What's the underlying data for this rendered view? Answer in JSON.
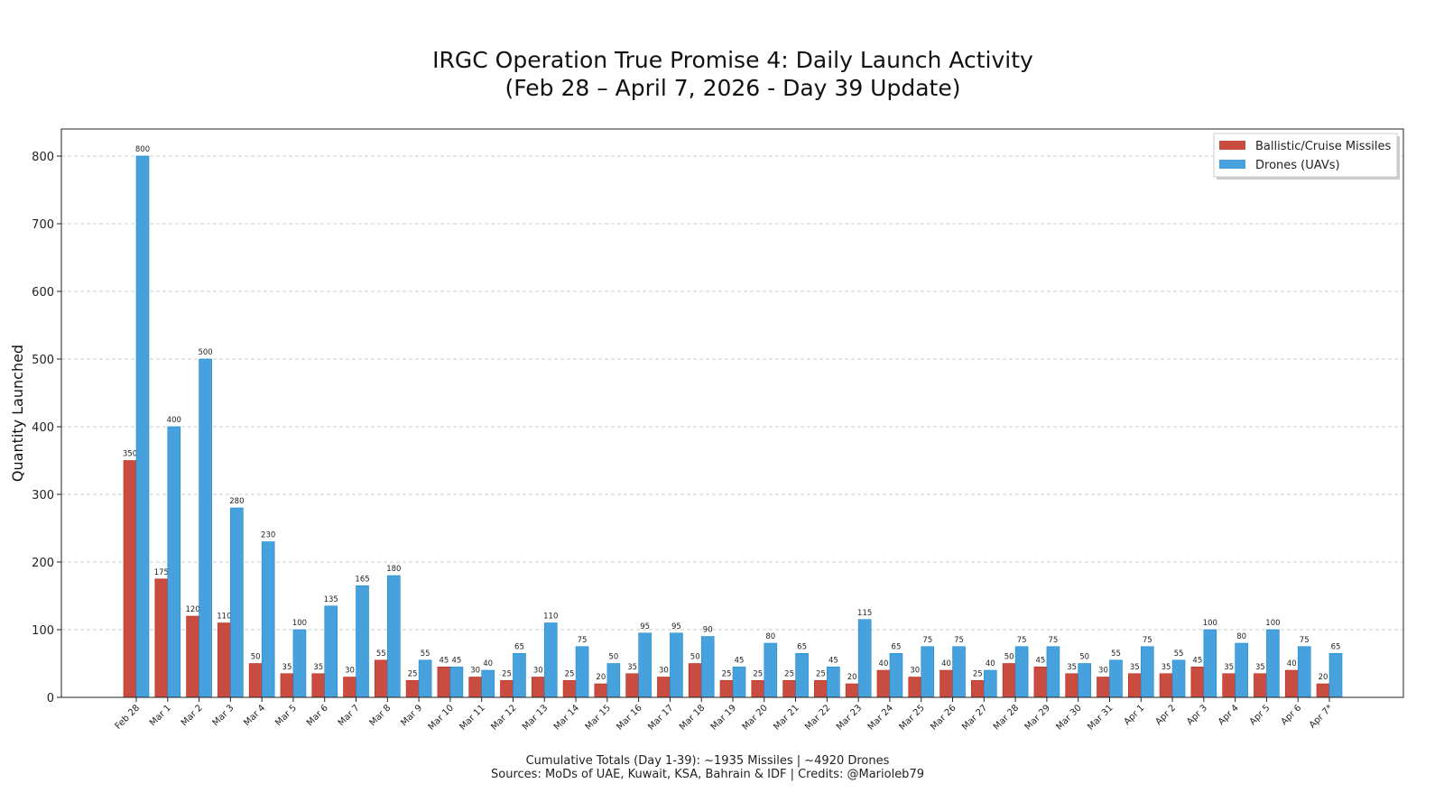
{
  "chart_data": {
    "type": "bar",
    "title": "IRGC Operation True Promise 4: Daily Launch Activity",
    "subtitle": "(Feb 28 – April 7, 2026 - Day 39 Update)",
    "xlabel": "",
    "ylabel": "Quantity Launched",
    "ylim": [
      0,
      840
    ],
    "yticks": [
      0,
      100,
      200,
      300,
      400,
      500,
      600,
      700,
      800
    ],
    "grid": true,
    "legend_position": "top-right",
    "categories": [
      "Feb 28",
      "Mar 1",
      "Mar 2",
      "Mar 3",
      "Mar 4",
      "Mar 5",
      "Mar 6",
      "Mar 7",
      "Mar 8",
      "Mar 9",
      "Mar 10",
      "Mar 11",
      "Mar 12",
      "Mar 13",
      "Mar 14",
      "Mar 15",
      "Mar 16",
      "Mar 17",
      "Mar 18",
      "Mar 19",
      "Mar 20",
      "Mar 21",
      "Mar 22",
      "Mar 23",
      "Mar 24",
      "Mar 25",
      "Mar 26",
      "Mar 27",
      "Mar 28",
      "Mar 29",
      "Mar 30",
      "Mar 31",
      "Apr 1",
      "Apr 2",
      "Apr 3",
      "Apr 4",
      "Apr 5",
      "Apr 6",
      "Apr 7*"
    ],
    "series": [
      {
        "name": "Ballistic/Cruise Missiles",
        "color": "#c84c3f",
        "edge": "#c0291a",
        "values": [
          350,
          175,
          120,
          110,
          50,
          35,
          35,
          30,
          55,
          25,
          45,
          30,
          25,
          30,
          25,
          20,
          35,
          30,
          50,
          25,
          25,
          25,
          25,
          20,
          40,
          30,
          40,
          25,
          50,
          45,
          35,
          30,
          35,
          35,
          45,
          35,
          35,
          40,
          20
        ]
      },
      {
        "name": "Drones (UAVs)",
        "color": "#47a1dc",
        "edge": "#1a8ad6",
        "values": [
          800,
          400,
          500,
          280,
          230,
          100,
          135,
          165,
          180,
          55,
          45,
          40,
          65,
          110,
          75,
          50,
          95,
          95,
          90,
          45,
          80,
          65,
          45,
          115,
          65,
          75,
          75,
          40,
          75,
          75,
          50,
          55,
          75,
          55,
          100,
          80,
          100,
          75,
          65
        ]
      }
    ],
    "footer": [
      "Cumulative Totals (Day 1-39): ~1935 Missiles | ~4920 Drones",
      "Sources: MoDs of UAE, Kuwait, KSA, Bahrain & IDF | Credits: @Marioleb79"
    ]
  }
}
